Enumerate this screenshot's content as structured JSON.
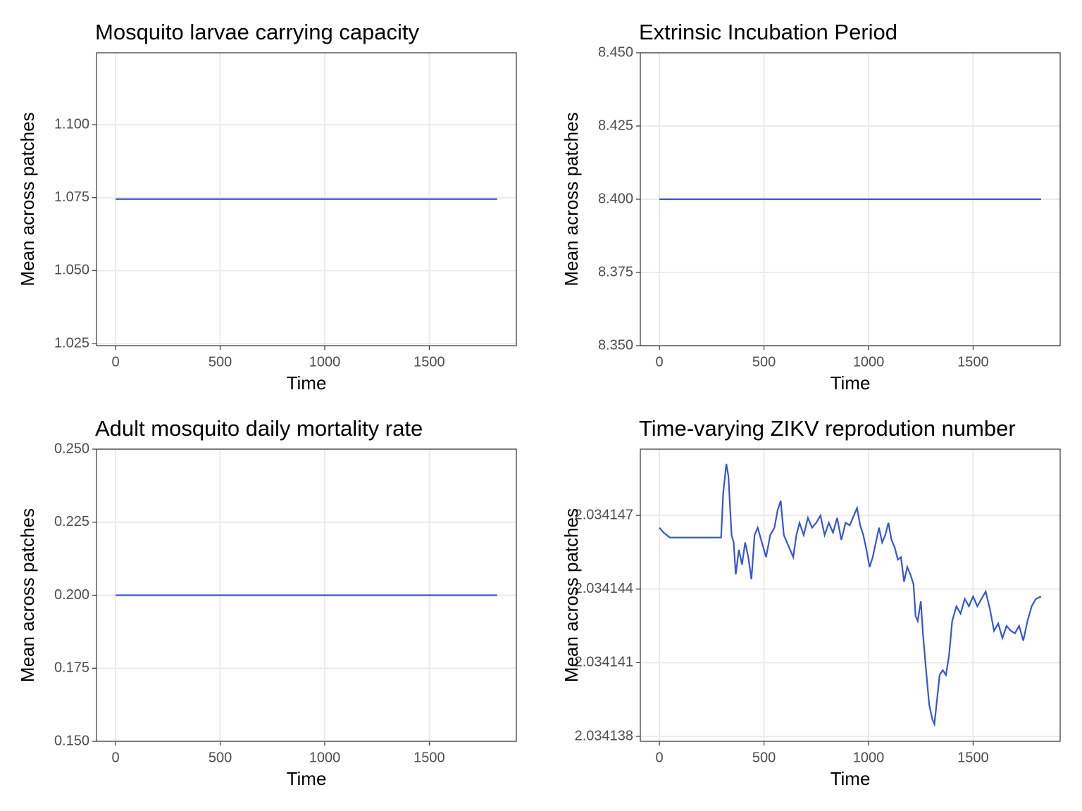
{
  "chart_data": [
    {
      "type": "line",
      "title": "Mosquito larvae carrying capacity",
      "x_label": "Time",
      "y_label": "Mean across patches",
      "x": [
        0,
        1825
      ],
      "values": [
        1.0745,
        1.0745
      ],
      "color": "#3556d8",
      "xlim": [
        -91.25,
        1916.25
      ],
      "xticks": [
        0,
        500,
        1000,
        1500
      ],
      "ylim": [
        1.0243,
        1.1246
      ],
      "yticks": [
        {
          "value": 1.025,
          "label": "1.025"
        },
        {
          "value": 1.05,
          "label": "1.050"
        },
        {
          "value": 1.075,
          "label": "1.075"
        },
        {
          "value": 1.1,
          "label": "1.100"
        }
      ],
      "grid": true
    },
    {
      "type": "line",
      "title": "Extrinsic Incubation Period",
      "x_label": "Time",
      "y_label": "Mean across patches",
      "x": [
        0,
        1825
      ],
      "values": [
        8.4,
        8.4
      ],
      "color": "#3556d8",
      "xlim": [
        -91.25,
        1916.25
      ],
      "xticks": [
        0,
        500,
        1000,
        1500
      ],
      "ylim": [
        8.35,
        8.45
      ],
      "yticks": [
        {
          "value": 8.35,
          "label": "8.350"
        },
        {
          "value": 8.375,
          "label": "8.375"
        },
        {
          "value": 8.4,
          "label": "8.400"
        },
        {
          "value": 8.425,
          "label": "8.425"
        },
        {
          "value": 8.45,
          "label": "8.450"
        }
      ],
      "grid": true
    },
    {
      "type": "line",
      "title": "Adult mosquito daily mortality rate",
      "x_label": "Time",
      "y_label": "Mean across patches",
      "x": [
        0,
        1825
      ],
      "values": [
        0.2,
        0.2
      ],
      "color": "#3556d8",
      "xlim": [
        -91.25,
        1916.25
      ],
      "xticks": [
        0,
        500,
        1000,
        1500
      ],
      "ylim": [
        0.15,
        0.25
      ],
      "yticks": [
        {
          "value": 0.15,
          "label": "0.150"
        },
        {
          "value": 0.175,
          "label": "0.175"
        },
        {
          "value": 0.2,
          "label": "0.200"
        },
        {
          "value": 0.225,
          "label": "0.225"
        },
        {
          "value": 0.25,
          "label": "0.250"
        }
      ],
      "grid": true
    },
    {
      "type": "line",
      "title": "Time-varying ZIKV reprodution number",
      "x_label": "Time",
      "y_label": "Mean across patches",
      "x": [
        0,
        20,
        50,
        100,
        200,
        295,
        305,
        320,
        330,
        345,
        355,
        365,
        380,
        395,
        410,
        425,
        440,
        455,
        470,
        490,
        510,
        530,
        550,
        565,
        580,
        595,
        610,
        625,
        640,
        655,
        670,
        690,
        710,
        730,
        750,
        770,
        790,
        810,
        830,
        850,
        870,
        890,
        910,
        930,
        945,
        960,
        975,
        990,
        1005,
        1020,
        1035,
        1050,
        1065,
        1080,
        1095,
        1110,
        1125,
        1140,
        1155,
        1170,
        1185,
        1200,
        1215,
        1225,
        1235,
        1250,
        1260,
        1275,
        1290,
        1305,
        1315,
        1325,
        1340,
        1355,
        1370,
        1385,
        1400,
        1420,
        1440,
        1460,
        1480,
        1500,
        1520,
        1540,
        1560,
        1580,
        1600,
        1620,
        1640,
        1660,
        1680,
        1700,
        1720,
        1740,
        1760,
        1780,
        1800,
        1825
      ],
      "values": [
        2.0341465,
        2.0341463,
        2.0341461,
        2.0341461,
        2.0341461,
        2.0341461,
        2.0341479,
        2.0341491,
        2.0341486,
        2.0341462,
        2.0341459,
        2.0341446,
        2.0341456,
        2.034145,
        2.0341459,
        2.0341453,
        2.0341444,
        2.0341462,
        2.0341465,
        2.0341459,
        2.0341453,
        2.0341462,
        2.0341465,
        2.0341472,
        2.0341476,
        2.0341462,
        2.0341459,
        2.0341456,
        2.0341453,
        2.0341462,
        2.0341467,
        2.0341462,
        2.0341469,
        2.0341465,
        2.0341467,
        2.034147,
        2.0341462,
        2.0341467,
        2.0341463,
        2.0341469,
        2.034146,
        2.0341467,
        2.0341466,
        2.034147,
        2.0341473,
        2.0341466,
        2.0341462,
        2.0341456,
        2.0341449,
        2.0341453,
        2.0341459,
        2.0341465,
        2.0341459,
        2.0341462,
        2.0341467,
        2.034146,
        2.0341457,
        2.0341452,
        2.0341453,
        2.0341443,
        2.0341449,
        2.0341446,
        2.0341442,
        2.0341429,
        2.0341427,
        2.0341435,
        2.0341422,
        2.0341407,
        2.0341393,
        2.0341387,
        2.0341385,
        2.0341393,
        2.0341405,
        2.0341407,
        2.0341405,
        2.0341413,
        2.0341427,
        2.0341433,
        2.034143,
        2.0341436,
        2.0341433,
        2.0341437,
        2.0341433,
        2.0341436,
        2.0341439,
        2.0341432,
        2.0341423,
        2.0341426,
        2.034142,
        2.0341425,
        2.0341423,
        2.0341422,
        2.0341425,
        2.0341419,
        2.0341427,
        2.0341433,
        2.0341436,
        2.0341437
      ],
      "color": "#3556d8",
      "xlim": [
        -91.25,
        1916.25
      ],
      "xticks": [
        0,
        500,
        1000,
        1500
      ],
      "ylim": [
        2.0341378,
        2.0341497
      ],
      "yticks": [
        2.034138,
        2.034141,
        2.034144,
        2.034147
      ],
      "grid": true
    }
  ]
}
